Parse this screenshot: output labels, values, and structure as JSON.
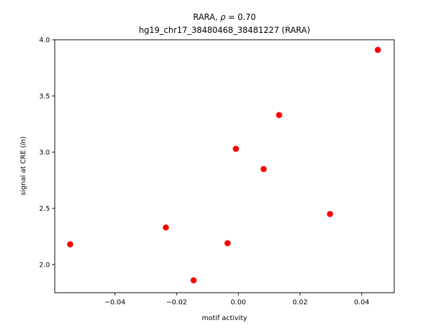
{
  "chart_data": {
    "type": "scatter",
    "title_line1_prefix": "RARA, ",
    "title_line1_rho": "ρ",
    "title_line1_suffix": " = 0.70",
    "title_line2": "hg19_chr17_38480468_38481227 (RARA)",
    "xlabel": "motif activity",
    "ylabel_prefix": "signal at CRE (",
    "ylabel_italic": "ln",
    "ylabel_suffix": ")",
    "xlim": [
      -0.0595,
      0.0505
    ],
    "ylim": [
      1.75,
      4.0
    ],
    "xticks": [
      -0.04,
      -0.02,
      0.0,
      0.02,
      0.04
    ],
    "xtick_labels": [
      "−0.04",
      "−0.02",
      "0.00",
      "0.02",
      "0.04"
    ],
    "yticks": [
      2.0,
      2.5,
      3.0,
      3.5,
      4.0
    ],
    "ytick_labels": [
      "2.0",
      "2.5",
      "3.0",
      "3.5",
      "4.0"
    ],
    "grid": false,
    "marker_color": "#ff0000",
    "points": [
      {
        "x": -0.0545,
        "y": 2.18
      },
      {
        "x": -0.0235,
        "y": 2.33
      },
      {
        "x": -0.0145,
        "y": 1.86
      },
      {
        "x": -0.0035,
        "y": 2.19
      },
      {
        "x": -0.0008,
        "y": 3.03
      },
      {
        "x": 0.0082,
        "y": 2.85
      },
      {
        "x": 0.0132,
        "y": 3.33
      },
      {
        "x": 0.0297,
        "y": 2.45
      },
      {
        "x": 0.0452,
        "y": 3.91
      }
    ]
  }
}
